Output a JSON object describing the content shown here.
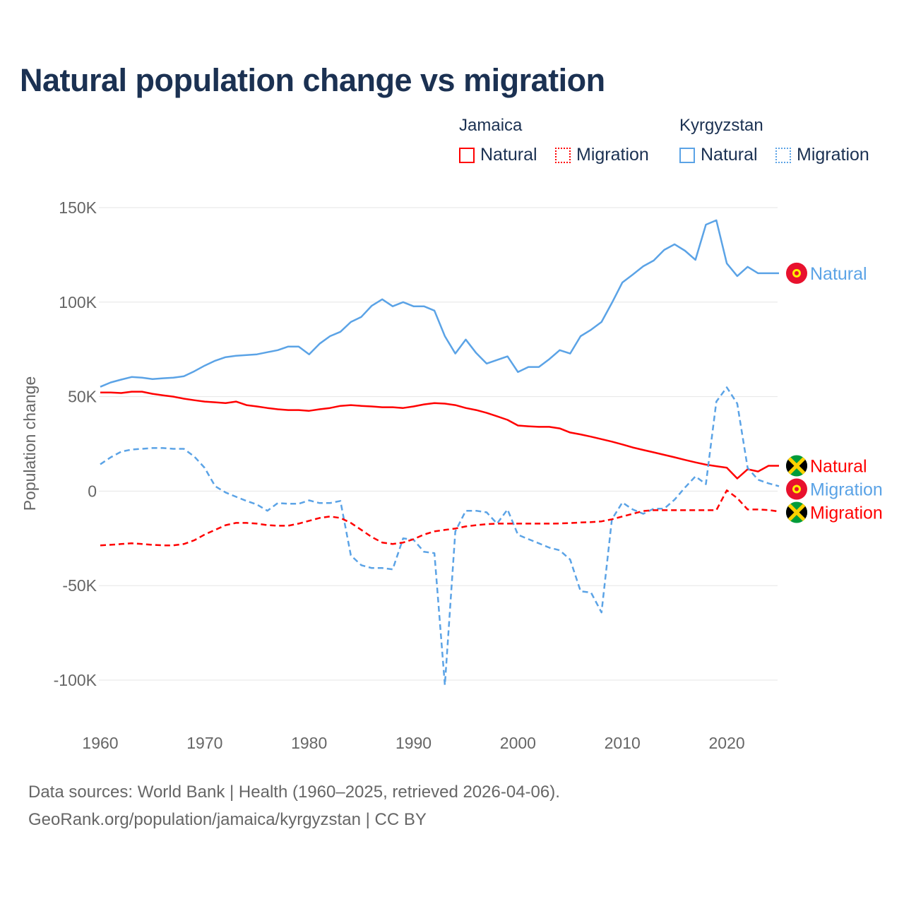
{
  "title": "Natural population change vs migration",
  "legend": {
    "groups": [
      {
        "name": "Jamaica",
        "items": [
          "Natural",
          "Migration"
        ],
        "color": "#ff0000"
      },
      {
        "name": "Kyrgyzstan",
        "items": [
          "Natural",
          "Migration"
        ],
        "color": "#5ba3e6"
      }
    ]
  },
  "footer": {
    "line1": "Data sources: World Bank | Health (1960–2025, retrieved 2026-04-06).",
    "line2": "GeoRank.org/population/jamaica/kyrgyzstan | CC BY"
  },
  "chart_data": {
    "type": "line",
    "title": "Natural population change vs migration",
    "xlabel": "",
    "ylabel": "Population change",
    "xlim": [
      1960,
      2025
    ],
    "ylim": [
      -100000,
      150000
    ],
    "xticks": [
      1960,
      1970,
      1980,
      1990,
      2000,
      2010,
      2020
    ],
    "xtick_labels": [
      "1960",
      "1970",
      "1980",
      "1990",
      "2000",
      "2010",
      "2020"
    ],
    "yticks": [
      150000,
      100000,
      50000,
      0,
      -50000,
      -100000
    ],
    "ytick_labels": [
      "150K",
      "100K",
      "50K",
      "0",
      "-50K",
      "-100K"
    ],
    "grid": true,
    "legend_position": "top-right",
    "x_start": 1960,
    "series": [
      {
        "name": "Kyrgyzstan Natural",
        "country": "Kyrgyzstan",
        "label": "Natural",
        "color": "#5ba3e6",
        "dash": false,
        "values_k": [
          55.2,
          57.5,
          59,
          60.4,
          60,
          59.3,
          59.7,
          60,
          60.8,
          63.4,
          66.4,
          69,
          70.9,
          71.6,
          72,
          72.4,
          73.5,
          74.6,
          76.5,
          76.5,
          72.4,
          78,
          82,
          84.3,
          89.5,
          92.2,
          98.1,
          101.5,
          97.8,
          100,
          97.8,
          97.8,
          95.5,
          82,
          72.8,
          80.2,
          73.1,
          67.5,
          69.4,
          71.3,
          63,
          65.7,
          65.7,
          69.8,
          74.6,
          72.8,
          82,
          85.4,
          89.5,
          99.6,
          110.4,
          114.6,
          119,
          122,
          127.6,
          130.6,
          127.2,
          122.4,
          141,
          143.3,
          120.5,
          113.8,
          118.7,
          115.3,
          115.3,
          115.3
        ]
      },
      {
        "name": "Jamaica Natural",
        "country": "Jamaica",
        "label": "Natural",
        "color": "#ff0000",
        "dash": false,
        "values_k": [
          52.2,
          52.2,
          51.9,
          52.6,
          52.6,
          51.5,
          50.7,
          50,
          48.9,
          48.1,
          47.4,
          47,
          46.6,
          47.4,
          45.5,
          44.8,
          44,
          43.3,
          42.9,
          42.9,
          42.5,
          43.3,
          44,
          45.1,
          45.5,
          45.1,
          44.8,
          44.4,
          44.4,
          44,
          44.8,
          45.9,
          46.6,
          46.3,
          45.5,
          44,
          42.9,
          41.4,
          39.6,
          37.7,
          34.7,
          34.3,
          34,
          34,
          33.2,
          31,
          30,
          28.8,
          27.5,
          26.2,
          24.7,
          23.1,
          21.8,
          20.5,
          19.2,
          17.9,
          16.5,
          15.2,
          14,
          13.2,
          12.4,
          6.7,
          11.6,
          10.4,
          13.4,
          13.4
        ]
      },
      {
        "name": "Kyrgyzstan Migration",
        "country": "Kyrgyzstan",
        "label": "Migration",
        "color": "#5ba3e6",
        "dash": true,
        "values_k": [
          14.2,
          17.9,
          20.9,
          22,
          22.4,
          22.8,
          22.8,
          22.4,
          22.4,
          18.3,
          12.3,
          2.6,
          -0.7,
          -3,
          -5.2,
          -7.1,
          -10.4,
          -6.3,
          -6.7,
          -6.7,
          -4.9,
          -6.3,
          -6.3,
          -5.2,
          -34,
          -39.2,
          -40.7,
          -40.7,
          -41.4,
          -25,
          -25.7,
          -32.1,
          -32.8,
          -102.6,
          -21.3,
          -10.4,
          -10.4,
          -11.2,
          -17.2,
          -9.7,
          -23.1,
          -25.4,
          -27.6,
          -29.9,
          -31.3,
          -36.2,
          -53,
          -53.7,
          -64.2,
          -14.9,
          -6,
          -9.7,
          -12,
          -9.3,
          -9.3,
          -4.5,
          1.9,
          7.8,
          3.7,
          47.4,
          54.9,
          46.3,
          12.3,
          6,
          4.1,
          2.6
        ]
      },
      {
        "name": "Jamaica Migration",
        "country": "Jamaica",
        "label": "Migration",
        "color": "#ff0000",
        "dash": true,
        "values_k": [
          -28.7,
          -28.4,
          -28,
          -27.6,
          -28,
          -28.4,
          -28.7,
          -28.7,
          -28,
          -26,
          -23,
          -20.5,
          -18,
          -16.8,
          -16.8,
          -17.2,
          -18,
          -18.3,
          -18.3,
          -17.2,
          -15.7,
          -14.2,
          -13.4,
          -14.2,
          -16.8,
          -20.5,
          -24.3,
          -27.2,
          -28,
          -27.2,
          -25.4,
          -23,
          -21.3,
          -20.5,
          -19.8,
          -18.7,
          -18,
          -17.5,
          -17.2,
          -17.2,
          -17.2,
          -17.2,
          -17.2,
          -17.2,
          -17.1,
          -16.9,
          -16.6,
          -16.4,
          -16,
          -14.9,
          -13.4,
          -12,
          -10.5,
          -10.1,
          -10.1,
          -10.1,
          -10.1,
          -10.1,
          -10.1,
          -10.1,
          0.4,
          -3.7,
          -9.7,
          -9.7,
          -10,
          -10.8
        ]
      }
    ]
  }
}
